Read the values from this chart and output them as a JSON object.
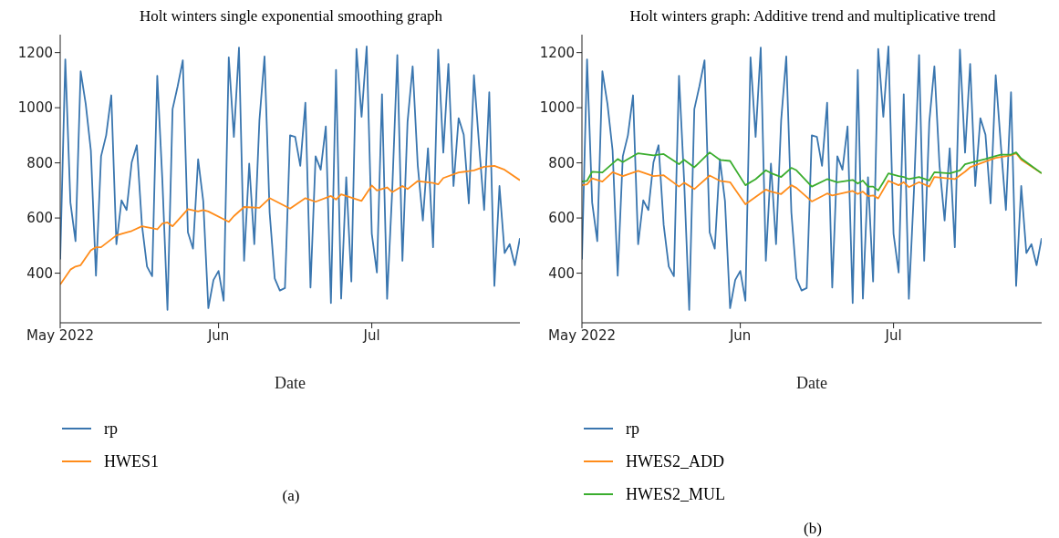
{
  "chart_data": [
    {
      "type": "line",
      "title": "Holt winters single exponential smoothing graph",
      "xlabel": "Date",
      "legend": "bottom",
      "annotations": [
        "(a)"
      ],
      "xlim": [
        "2022-05-01",
        "2022-07-30"
      ],
      "xticks": [
        {
          "value": "2022-05-01",
          "label": "May 2022"
        },
        {
          "value": "2022-06-01",
          "label": "Jun"
        },
        {
          "value": "2022-07-01",
          "label": "Jul"
        }
      ],
      "ylim": [
        220,
        1265
      ],
      "yticks": [
        400,
        600,
        800,
        1000,
        1200
      ],
      "x": [
        "2022-05-01",
        "2022-05-02",
        "2022-05-03",
        "2022-05-04",
        "2022-05-05",
        "2022-05-06",
        "2022-05-07",
        "2022-05-08",
        "2022-05-09",
        "2022-05-10",
        "2022-05-11",
        "2022-05-12",
        "2022-05-13",
        "2022-05-14",
        "2022-05-15",
        "2022-05-16",
        "2022-05-17",
        "2022-05-18",
        "2022-05-19",
        "2022-05-20",
        "2022-05-21",
        "2022-05-22",
        "2022-05-23",
        "2022-05-24",
        "2022-05-25",
        "2022-05-26",
        "2022-05-27",
        "2022-05-28",
        "2022-05-29",
        "2022-05-30",
        "2022-05-31",
        "2022-06-01",
        "2022-06-02",
        "2022-06-03",
        "2022-06-04",
        "2022-06-05",
        "2022-06-06",
        "2022-06-07",
        "2022-06-08",
        "2022-06-09",
        "2022-06-10",
        "2022-06-11",
        "2022-06-12",
        "2022-06-13",
        "2022-06-14",
        "2022-06-15",
        "2022-06-16",
        "2022-06-17",
        "2022-06-18",
        "2022-06-19",
        "2022-06-20",
        "2022-06-21",
        "2022-06-22",
        "2022-06-23",
        "2022-06-24",
        "2022-06-25",
        "2022-06-26",
        "2022-06-27",
        "2022-06-28",
        "2022-06-29",
        "2022-06-30",
        "2022-07-01",
        "2022-07-02",
        "2022-07-03",
        "2022-07-04",
        "2022-07-05",
        "2022-07-06",
        "2022-07-07",
        "2022-07-08",
        "2022-07-09",
        "2022-07-10",
        "2022-07-11",
        "2022-07-12",
        "2022-07-13",
        "2022-07-14",
        "2022-07-15",
        "2022-07-16",
        "2022-07-17",
        "2022-07-18",
        "2022-07-19",
        "2022-07-20",
        "2022-07-21",
        "2022-07-22",
        "2022-07-23",
        "2022-07-24",
        "2022-07-25",
        "2022-07-26",
        "2022-07-27",
        "2022-07-28",
        "2022-07-29",
        "2022-07-30"
      ],
      "series": [
        {
          "name": "rp",
          "color": "#3a76af",
          "values": [
            450,
            1175,
            656,
            516,
            1132,
            1013,
            845,
            391,
            824,
            900,
            1045,
            505,
            664,
            629,
            802,
            864,
            575,
            424,
            389,
            1116,
            737,
            267,
            995,
            1078,
            1172,
            548,
            489,
            813,
            662,
            273,
            375,
            408,
            300,
            1183,
            894,
            1218,
            445,
            797,
            505,
            954,
            1186,
            620,
            381,
            337,
            346,
            900,
            894,
            789,
            1018,
            348,
            824,
            775,
            932,
            292,
            1137,
            308,
            748,
            370,
            1213,
            967,
            1222,
            543,
            402,
            1049,
            307,
            700,
            1191,
            445,
            948,
            1150,
            791,
            591,
            853,
            494,
            1211,
            837,
            1159,
            716,
            962,
            902,
            653,
            1118,
            867,
            629,
            1056,
            354,
            716,
            473,
            505,
            429,
            527
          ]
        },
        {
          "name": "HWES1",
          "color": "#ff8c1a",
          "x": [
            "2022-05-01",
            "2022-05-03",
            "2022-05-04",
            "2022-05-05",
            "2022-05-07",
            "2022-05-08",
            "2022-05-09",
            "2022-05-12",
            "2022-05-14",
            "2022-05-15",
            "2022-05-17",
            "2022-05-20",
            "2022-05-21",
            "2022-05-22",
            "2022-05-23",
            "2022-05-26",
            "2022-05-28",
            "2022-05-29",
            "2022-05-30",
            "2022-06-03",
            "2022-06-04",
            "2022-06-06",
            "2022-06-09",
            "2022-06-11",
            "2022-06-15",
            "2022-06-18",
            "2022-06-20",
            "2022-06-23",
            "2022-06-24",
            "2022-06-25",
            "2022-06-29",
            "2022-07-01",
            "2022-07-02",
            "2022-07-04",
            "2022-07-05",
            "2022-07-07",
            "2022-07-08",
            "2022-07-10",
            "2022-07-13",
            "2022-07-14",
            "2022-07-15",
            "2022-07-18",
            "2022-07-20",
            "2022-07-21",
            "2022-07-23",
            "2022-07-25",
            "2022-07-27",
            "2022-07-30"
          ],
          "values": [
            359,
            413,
            424,
            429,
            483,
            494,
            494,
            537,
            548,
            553,
            570,
            559,
            580,
            584,
            570,
            632,
            624,
            629,
            624,
            586,
            607,
            640,
            637,
            672,
            634,
            672,
            659,
            680,
            667,
            686,
            662,
            718,
            700,
            711,
            694,
            716,
            705,
            734,
            727,
            722,
            745,
            765,
            770,
            773,
            786,
            789,
            775,
            737
          ]
        }
      ]
    },
    {
      "type": "line",
      "title": "Holt winters graph: Additive trend and multiplicative trend",
      "xlabel": "Date",
      "legend": "bottom",
      "annotations": [
        "(b)"
      ],
      "xlim": [
        "2022-05-01",
        "2022-07-30"
      ],
      "xticks": [
        {
          "value": "2022-05-01",
          "label": "May 2022"
        },
        {
          "value": "2022-06-01",
          "label": "Jun"
        },
        {
          "value": "2022-07-01",
          "label": "Jul"
        }
      ],
      "ylim": [
        220,
        1265
      ],
      "yticks": [
        400,
        600,
        800,
        1000,
        1200
      ],
      "x": [
        "2022-05-01",
        "2022-05-02",
        "2022-05-03",
        "2022-05-04",
        "2022-05-05",
        "2022-05-06",
        "2022-05-07",
        "2022-05-08",
        "2022-05-09",
        "2022-05-10",
        "2022-05-11",
        "2022-05-12",
        "2022-05-13",
        "2022-05-14",
        "2022-05-15",
        "2022-05-16",
        "2022-05-17",
        "2022-05-18",
        "2022-05-19",
        "2022-05-20",
        "2022-05-21",
        "2022-05-22",
        "2022-05-23",
        "2022-05-24",
        "2022-05-25",
        "2022-05-26",
        "2022-05-27",
        "2022-05-28",
        "2022-05-29",
        "2022-05-30",
        "2022-05-31",
        "2022-06-01",
        "2022-06-02",
        "2022-06-03",
        "2022-06-04",
        "2022-06-05",
        "2022-06-06",
        "2022-06-07",
        "2022-06-08",
        "2022-06-09",
        "2022-06-10",
        "2022-06-11",
        "2022-06-12",
        "2022-06-13",
        "2022-06-14",
        "2022-06-15",
        "2022-06-16",
        "2022-06-17",
        "2022-06-18",
        "2022-06-19",
        "2022-06-20",
        "2022-06-21",
        "2022-06-22",
        "2022-06-23",
        "2022-06-24",
        "2022-06-25",
        "2022-06-26",
        "2022-06-27",
        "2022-06-28",
        "2022-06-29",
        "2022-06-30",
        "2022-07-01",
        "2022-07-02",
        "2022-07-03",
        "2022-07-04",
        "2022-07-05",
        "2022-07-06",
        "2022-07-07",
        "2022-07-08",
        "2022-07-09",
        "2022-07-10",
        "2022-07-11",
        "2022-07-12",
        "2022-07-13",
        "2022-07-14",
        "2022-07-15",
        "2022-07-16",
        "2022-07-17",
        "2022-07-18",
        "2022-07-19",
        "2022-07-20",
        "2022-07-21",
        "2022-07-22",
        "2022-07-23",
        "2022-07-24",
        "2022-07-25",
        "2022-07-26",
        "2022-07-27",
        "2022-07-28",
        "2022-07-29",
        "2022-07-30"
      ],
      "series": [
        {
          "name": "rp",
          "color": "#3a76af",
          "values": [
            450,
            1175,
            656,
            516,
            1132,
            1013,
            845,
            391,
            824,
            900,
            1045,
            505,
            664,
            629,
            802,
            864,
            575,
            424,
            389,
            1116,
            737,
            267,
            995,
            1078,
            1172,
            548,
            489,
            813,
            662,
            273,
            375,
            408,
            300,
            1183,
            894,
            1218,
            445,
            797,
            505,
            954,
            1186,
            620,
            381,
            337,
            346,
            900,
            894,
            789,
            1018,
            348,
            824,
            775,
            932,
            292,
            1137,
            308,
            748,
            370,
            1213,
            967,
            1222,
            543,
            402,
            1049,
            307,
            700,
            1191,
            445,
            948,
            1150,
            791,
            591,
            853,
            494,
            1211,
            837,
            1159,
            716,
            962,
            902,
            653,
            1118,
            867,
            629,
            1056,
            354,
            716,
            473,
            505,
            429,
            527
          ]
        },
        {
          "name": "HWES2_ADD",
          "color": "#ff8c1a",
          "x": [
            "2022-05-01",
            "2022-05-02",
            "2022-05-03",
            "2022-05-05",
            "2022-05-07",
            "2022-05-09",
            "2022-05-12",
            "2022-05-15",
            "2022-05-17",
            "2022-05-20",
            "2022-05-21",
            "2022-05-23",
            "2022-05-26",
            "2022-05-28",
            "2022-05-30",
            "2022-06-02",
            "2022-06-06",
            "2022-06-07",
            "2022-06-09",
            "2022-06-11",
            "2022-06-12",
            "2022-06-15",
            "2022-06-18",
            "2022-06-19",
            "2022-06-23",
            "2022-06-24",
            "2022-06-25",
            "2022-06-26",
            "2022-06-27",
            "2022-06-28",
            "2022-06-30",
            "2022-07-02",
            "2022-07-03",
            "2022-07-04",
            "2022-07-06",
            "2022-07-08",
            "2022-07-09",
            "2022-07-13",
            "2022-07-15",
            "2022-07-16",
            "2022-07-19",
            "2022-07-21",
            "2022-07-24",
            "2022-07-25",
            "2022-07-26",
            "2022-07-30"
          ],
          "values": [
            719,
            722,
            744,
            732,
            766,
            752,
            771,
            752,
            755,
            714,
            728,
            705,
            754,
            735,
            730,
            650,
            703,
            696,
            687,
            719,
            709,
            660,
            689,
            682,
            698,
            687,
            696,
            679,
            682,
            671,
            735,
            719,
            730,
            712,
            730,
            714,
            749,
            741,
            768,
            784,
            805,
            818,
            827,
            835,
            811,
            762
          ]
        },
        {
          "name": "HWES2_MUL",
          "color": "#3aad2e",
          "x": [
            "2022-05-01",
            "2022-05-02",
            "2022-05-03",
            "2022-05-05",
            "2022-05-08",
            "2022-05-09",
            "2022-05-12",
            "2022-05-15",
            "2022-05-17",
            "2022-05-20",
            "2022-05-21",
            "2022-05-23",
            "2022-05-26",
            "2022-05-28",
            "2022-05-30",
            "2022-06-02",
            "2022-06-04",
            "2022-06-06",
            "2022-06-07",
            "2022-06-09",
            "2022-06-11",
            "2022-06-12",
            "2022-06-15",
            "2022-06-18",
            "2022-06-20",
            "2022-06-23",
            "2022-06-24",
            "2022-06-25",
            "2022-06-26",
            "2022-06-27",
            "2022-06-28",
            "2022-06-29",
            "2022-06-30",
            "2022-07-02",
            "2022-07-03",
            "2022-07-04",
            "2022-07-06",
            "2022-07-08",
            "2022-07-09",
            "2022-07-12",
            "2022-07-14",
            "2022-07-15",
            "2022-07-16",
            "2022-07-19",
            "2022-07-21",
            "2022-07-22",
            "2022-07-24",
            "2022-07-25",
            "2022-07-26",
            "2022-07-30"
          ],
          "values": [
            732,
            735,
            768,
            765,
            814,
            803,
            835,
            827,
            832,
            795,
            811,
            784,
            838,
            811,
            807,
            719,
            741,
            773,
            763,
            749,
            782,
            773,
            714,
            741,
            730,
            738,
            725,
            736,
            714,
            714,
            700,
            730,
            762,
            752,
            749,
            741,
            749,
            736,
            766,
            762,
            773,
            795,
            800,
            814,
            825,
            830,
            830,
            838,
            816,
            762
          ]
        }
      ]
    }
  ]
}
